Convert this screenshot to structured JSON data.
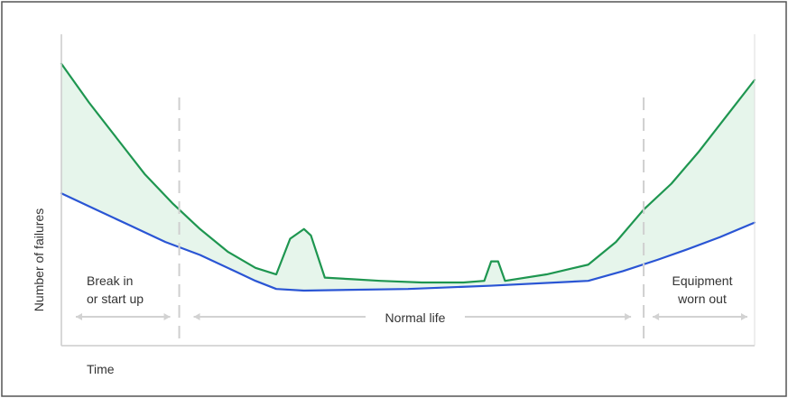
{
  "chart_data": {
    "type": "line",
    "title": "",
    "xlabel": "Time",
    "ylabel": "Number of failures",
    "xlim": [
      0,
      100
    ],
    "ylim": [
      0,
      100
    ],
    "grid": false,
    "legend": "none",
    "series": [
      {
        "color": "#1e9650",
        "points": [
          [
            0,
            87
          ],
          [
            4,
            75
          ],
          [
            8,
            64
          ],
          [
            12,
            53
          ],
          [
            16,
            44
          ],
          [
            20,
            36
          ],
          [
            24,
            29
          ],
          [
            28,
            24
          ],
          [
            31,
            22
          ],
          [
            33,
            33
          ],
          [
            35,
            36
          ],
          [
            36,
            34
          ],
          [
            38,
            21
          ],
          [
            42,
            20.5
          ],
          [
            46,
            20
          ],
          [
            52,
            19.5
          ],
          [
            58,
            19.5
          ],
          [
            61,
            20
          ],
          [
            62,
            26
          ],
          [
            63,
            26
          ],
          [
            64,
            20
          ],
          [
            70,
            22
          ],
          [
            76,
            25
          ],
          [
            80,
            32
          ],
          [
            84,
            42
          ],
          [
            88,
            50
          ],
          [
            92,
            60
          ],
          [
            96,
            71
          ],
          [
            100,
            82
          ]
        ]
      },
      {
        "color": "#2a55d4",
        "points": [
          [
            0,
            47
          ],
          [
            5,
            42
          ],
          [
            10,
            37
          ],
          [
            15,
            32
          ],
          [
            20,
            28
          ],
          [
            25,
            23
          ],
          [
            28,
            20
          ],
          [
            31,
            17.5
          ],
          [
            35,
            17
          ],
          [
            50,
            17.5
          ],
          [
            62,
            18.5
          ],
          [
            76,
            20
          ],
          [
            81,
            23
          ],
          [
            86,
            26.5
          ],
          [
            90,
            29.5
          ],
          [
            95,
            33.5
          ],
          [
            100,
            38
          ]
        ]
      }
    ],
    "fill_between": {
      "color": "#e6f5eb"
    },
    "phases": [
      {
        "label_lines": [
          "Break in",
          "or start up"
        ],
        "x_start": 0,
        "x_end": 17
      },
      {
        "label_lines": [
          "Normal life"
        ],
        "x_start": 17,
        "x_end": 84
      },
      {
        "label_lines": [
          "Equipment",
          "worn out"
        ],
        "x_start": 84,
        "x_end": 100
      }
    ],
    "dividers": [
      17,
      84
    ]
  }
}
